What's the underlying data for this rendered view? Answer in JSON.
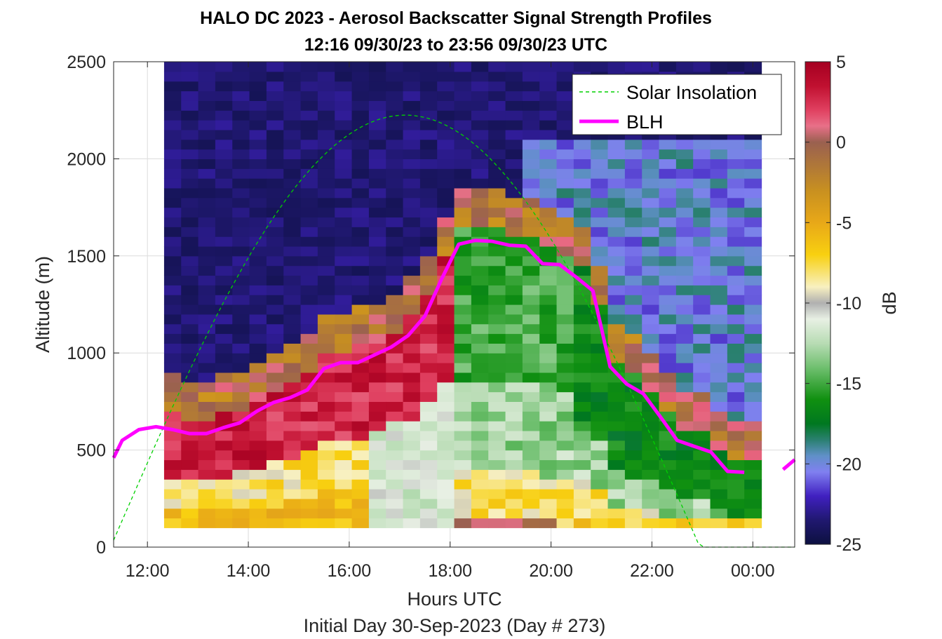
{
  "chart_data": {
    "type": "heatmap",
    "title": "HALO DC 2023 - Aerosol Backscatter Signal Strength Profiles",
    "subtitle": "12:16 09/30/23 to 23:56 09/30/23  UTC",
    "xlabel": "Hours UTC",
    "xlabel2": "Initial Day 30-Sep-2023 (Day # 273)",
    "ylabel": "Altitude (m)",
    "colorbar_label": "dB",
    "x_ticks": [
      "12:00",
      "14:00",
      "16:00",
      "18:00",
      "20:00",
      "22:00",
      "00:00"
    ],
    "x_tick_hours": [
      12,
      14,
      16,
      18,
      20,
      22,
      24
    ],
    "xlim_hours": [
      11.33,
      24.83
    ],
    "y_ticks": [
      "0",
      "500",
      "1000",
      "1500",
      "2000",
      "2500"
    ],
    "y_tick_values": [
      0,
      500,
      1000,
      1500,
      2000,
      2500
    ],
    "ylim": [
      0,
      2500
    ],
    "colorbar_ticks": [
      "5",
      "0",
      "-5",
      "-10",
      "-15",
      "-20",
      "-25"
    ],
    "colorbar_tick_values": [
      5,
      0,
      -5,
      -10,
      -15,
      -20,
      -25
    ],
    "clim": [
      -25,
      5
    ],
    "grid": true,
    "legend_position": "top-right",
    "legend": [
      "Solar Insolation",
      "BLH"
    ],
    "heatmap": {
      "x_start_hours": 12.33,
      "x_end_hours": 24.17,
      "y_start": 100,
      "y_end": 2500,
      "cell_height_m": 50,
      "n_cols": 35
    },
    "series": [
      {
        "name": "BLH",
        "color": "#ff00ff",
        "x_hours": [
          11.33,
          11.5,
          11.83,
          12.17,
          12.5,
          12.83,
          13.17,
          13.5,
          13.83,
          14.17,
          14.5,
          14.83,
          15.17,
          15.5,
          15.83,
          16.17,
          16.5,
          16.83,
          17.17,
          17.5,
          17.83,
          18.17,
          18.5,
          18.83,
          19.17,
          19.5,
          19.83,
          20.17,
          20.5,
          20.83,
          21.17,
          21.5,
          21.83,
          22.17,
          22.5,
          22.83,
          23.17,
          23.5,
          23.83,
          24.17
        ],
        "values": [
          460,
          550,
          605,
          620,
          605,
          585,
          585,
          615,
          640,
          700,
          745,
          770,
          810,
          920,
          950,
          950,
          990,
          1030,
          1090,
          1190,
          1380,
          1560,
          1580,
          1575,
          1555,
          1550,
          1460,
          1455,
          1390,
          1320,
          930,
          840,
          790,
          670,
          550,
          520,
          490,
          390,
          385,
          null
        ]
      },
      {
        "name": "Solar Insolation",
        "color": "#00d000",
        "dashed": true,
        "sunrise_hours": 11.27,
        "sunset_hours": 22.95,
        "peak_value": 2225,
        "peak_hours": 17.0
      }
    ],
    "colormap_stops": [
      [
        5,
        "#a50021"
      ],
      [
        3.5,
        "#c01030"
      ],
      [
        2,
        "#e04060"
      ],
      [
        1,
        "#e87088"
      ],
      [
        0,
        "#9a6050"
      ],
      [
        -1.5,
        "#b07838"
      ],
      [
        -3,
        "#c89020"
      ],
      [
        -5,
        "#e8a818"
      ],
      [
        -7,
        "#f8d010"
      ],
      [
        -9,
        "#f8f0c0"
      ],
      [
        -10,
        "#b0b0b0"
      ],
      [
        -11,
        "#e8f0e4"
      ],
      [
        -12.5,
        "#b8dcb4"
      ],
      [
        -14,
        "#70c070"
      ],
      [
        -16,
        "#109010"
      ],
      [
        -17.5,
        "#007820"
      ],
      [
        -18.5,
        "#2a8070"
      ],
      [
        -19.5,
        "#6090c8"
      ],
      [
        -20.5,
        "#8080f0"
      ],
      [
        -22,
        "#4020c0"
      ],
      [
        -23.5,
        "#201870"
      ],
      [
        -25,
        "#0c1040"
      ]
    ]
  }
}
